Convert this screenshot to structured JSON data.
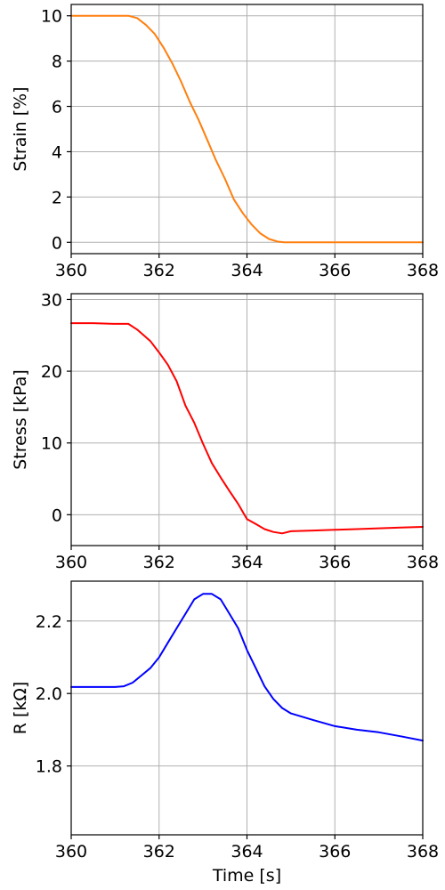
{
  "chart_data": [
    {
      "type": "line",
      "xlabel": "",
      "ylabel": "Strain [%]",
      "xlim": [
        360,
        368
      ],
      "ylim": [
        -0.5,
        10.5
      ],
      "x_ticks": [
        360,
        362,
        364,
        366,
        368
      ],
      "y_ticks": [
        0,
        2,
        4,
        6,
        8,
        10
      ],
      "x_tick_labels": [
        "360",
        "362",
        "364",
        "366",
        "368"
      ],
      "y_tick_labels": [
        "0",
        "2",
        "4",
        "6",
        "8",
        "10"
      ],
      "grid": true,
      "color": "#ff7f0e",
      "series": [
        {
          "x": [
            360.0,
            360.5,
            361.0,
            361.3,
            361.5,
            361.7,
            361.9,
            362.1,
            362.3,
            362.5,
            362.7,
            362.9,
            363.1,
            363.3,
            363.5,
            363.7,
            363.9,
            364.1,
            364.3,
            364.5,
            364.7,
            364.85,
            365.0,
            366.0,
            367.0,
            368.0
          ],
          "y": [
            10.0,
            10.0,
            10.0,
            10.0,
            9.9,
            9.6,
            9.2,
            8.6,
            7.9,
            7.1,
            6.2,
            5.4,
            4.5,
            3.6,
            2.8,
            1.9,
            1.3,
            0.8,
            0.4,
            0.15,
            0.03,
            0.0,
            0.0,
            0.0,
            0.0,
            0.0
          ]
        }
      ]
    },
    {
      "type": "line",
      "xlabel": "",
      "ylabel": "Stress [kPa]",
      "xlim": [
        360,
        368
      ],
      "ylim": [
        -4.3,
        30.8
      ],
      "x_ticks": [
        360,
        362,
        364,
        366,
        368
      ],
      "y_ticks": [
        0,
        10,
        20,
        30
      ],
      "x_tick_labels": [
        "360",
        "362",
        "364",
        "366",
        "368"
      ],
      "y_tick_labels": [
        "0",
        "10",
        "20",
        "30"
      ],
      "grid": true,
      "color": "#ff0000",
      "series": [
        {
          "x": [
            360.0,
            360.5,
            361.0,
            361.3,
            361.5,
            361.8,
            362.0,
            362.2,
            362.4,
            362.6,
            362.8,
            363.0,
            363.2,
            363.4,
            363.6,
            363.8,
            364.0,
            364.2,
            364.4,
            364.6,
            364.8,
            365.0,
            365.5,
            366.0,
            366.5,
            367.0,
            367.5,
            368.0
          ],
          "y": [
            26.7,
            26.7,
            26.6,
            26.6,
            25.8,
            24.2,
            22.6,
            20.9,
            18.6,
            15.2,
            12.8,
            9.9,
            7.2,
            5.2,
            3.3,
            1.5,
            -0.6,
            -1.3,
            -2.0,
            -2.4,
            -2.6,
            -2.3,
            -2.2,
            -2.1,
            -2.0,
            -1.9,
            -1.8,
            -1.7
          ]
        }
      ]
    },
    {
      "type": "line",
      "xlabel": "Time [s]",
      "ylabel": "R [kΩ]",
      "xlim": [
        360,
        368
      ],
      "ylim": [
        1.61,
        2.31
      ],
      "x_ticks": [
        360,
        362,
        364,
        366,
        368
      ],
      "y_ticks": [
        1.8,
        2.0,
        2.2
      ],
      "x_tick_labels": [
        "360",
        "362",
        "364",
        "366",
        "368"
      ],
      "y_tick_labels": [
        "1.8",
        "2.0",
        "2.2"
      ],
      "grid": true,
      "color": "#0000ff",
      "series": [
        {
          "x": [
            360.0,
            360.5,
            361.0,
            361.2,
            361.4,
            361.6,
            361.8,
            362.0,
            362.2,
            362.4,
            362.6,
            362.8,
            363.0,
            363.2,
            363.4,
            363.6,
            363.8,
            364.0,
            364.2,
            364.4,
            364.6,
            364.8,
            365.0,
            365.5,
            366.0,
            366.5,
            367.0,
            367.5,
            368.0
          ],
          "y": [
            2.018,
            2.018,
            2.018,
            2.02,
            2.03,
            2.05,
            2.07,
            2.1,
            2.14,
            2.18,
            2.22,
            2.26,
            2.275,
            2.275,
            2.26,
            2.22,
            2.18,
            2.12,
            2.07,
            2.02,
            1.985,
            1.96,
            1.945,
            1.927,
            1.91,
            1.9,
            1.893,
            1.882,
            1.87
          ]
        }
      ]
    }
  ]
}
